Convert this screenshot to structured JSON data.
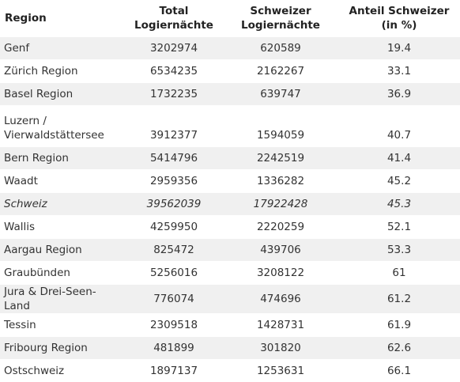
{
  "header": {
    "region": "Region",
    "total_line1": "Total",
    "total_line2": "Logiernächte",
    "swiss_line1": "Schweizer",
    "swiss_line2": "Logiernächte",
    "share_line1": "Anteil Schweizer",
    "share_line2": "(in %)"
  },
  "rows": [
    {
      "region": "Genf",
      "total": "3202974",
      "swiss": "620589",
      "share": "19.4"
    },
    {
      "region": "Zürich Region",
      "total": "6534235",
      "swiss": "2162267",
      "share": "33.1"
    },
    {
      "region": "Basel Region",
      "total": "1732235",
      "swiss": "639747",
      "share": "36.9"
    },
    {
      "region_line1": "Luzern /",
      "region_line2": "Vierwaldstättersee",
      "total": "3912377",
      "swiss": "1594059",
      "share": "40.7"
    },
    {
      "region": "Bern Region",
      "total": "5414796",
      "swiss": "2242519",
      "share": "41.4"
    },
    {
      "region": "Waadt",
      "total": "2959356",
      "swiss": "1336282",
      "share": "45.2"
    },
    {
      "region": "Schweiz",
      "total": "39562039",
      "swiss": "17922428",
      "share": "45.3"
    },
    {
      "region": "Wallis",
      "total": "4259950",
      "swiss": "2220259",
      "share": "52.1"
    },
    {
      "region": "Aargau Region",
      "total": "825472",
      "swiss": "439706",
      "share": "53.3"
    },
    {
      "region": "Graubünden",
      "total": "5256016",
      "swiss": "3208122",
      "share": "61"
    },
    {
      "region": "Jura & Drei-Seen-Land",
      "total": "776074",
      "swiss": "474696",
      "share": "61.2"
    },
    {
      "region": "Tessin",
      "total": "2309518",
      "swiss": "1428731",
      "share": "61.9"
    },
    {
      "region": "Fribourg Region",
      "total": "481899",
      "swiss": "301820",
      "share": "62.6"
    },
    {
      "region": "Ostschweiz",
      "total": "1897137",
      "swiss": "1253631",
      "share": "66.1"
    }
  ]
}
